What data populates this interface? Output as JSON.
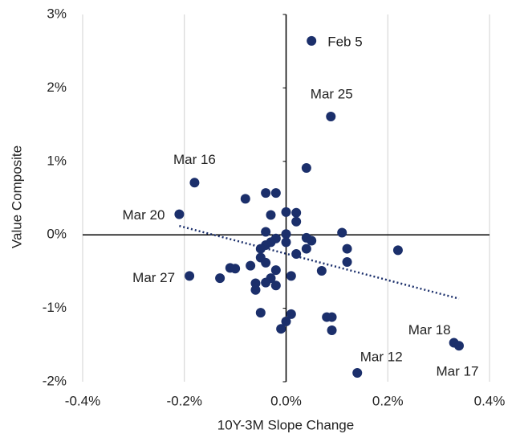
{
  "chart_data": {
    "type": "scatter",
    "x_label": "10Y-3M Slope Change",
    "y_label": "Value Composite",
    "color": "#1b2f6b",
    "grid": true,
    "trendline": true,
    "x": [
      0.05,
      0.088,
      -0.18,
      -0.21,
      -0.19,
      0.33,
      0.34,
      0.14,
      0.04,
      -0.08,
      -0.04,
      -0.02,
      0.0,
      -0.03,
      0.02,
      0.02,
      -0.04,
      0.0,
      0.11,
      0.04,
      0.05,
      0.0,
      -0.02,
      -0.03,
      -0.04,
      -0.05,
      0.04,
      0.12,
      0.22,
      0.02,
      -0.05,
      -0.04,
      -0.07,
      0.12,
      -0.02,
      -0.11,
      -0.1,
      0.07,
      -0.03,
      0.01,
      -0.13,
      -0.06,
      -0.02,
      -0.04,
      -0.06,
      -0.05,
      0.01,
      0.08,
      0.09,
      0.0,
      -0.01,
      0.09
    ],
    "values": [
      2.64,
      1.61,
      0.71,
      0.28,
      -0.56,
      -1.47,
      -1.51,
      -1.88,
      0.91,
      0.49,
      0.57,
      0.57,
      0.31,
      0.27,
      0.3,
      0.18,
      0.04,
      0.01,
      0.03,
      -0.04,
      -0.08,
      -0.1,
      -0.05,
      -0.1,
      -0.14,
      -0.19,
      -0.19,
      -0.19,
      -0.21,
      -0.26,
      -0.31,
      -0.38,
      -0.42,
      -0.37,
      -0.48,
      -0.45,
      -0.46,
      -0.49,
      -0.59,
      -0.56,
      -0.59,
      -0.66,
      -0.69,
      -0.65,
      -0.75,
      -1.06,
      -1.08,
      -1.12,
      -1.12,
      -1.18,
      -1.28,
      -1.3
    ],
    "point_labels": [
      "Feb 5",
      "Mar 25",
      "Mar 16",
      "Mar 20",
      "Mar 27",
      "Mar 18",
      "Mar 17",
      "Mar 12",
      null,
      null,
      null,
      null,
      null,
      null,
      null,
      null,
      null,
      null,
      null,
      null,
      null,
      null,
      null,
      null,
      null,
      null,
      null,
      null,
      null,
      null,
      null,
      null,
      null,
      null,
      null,
      null,
      null,
      null,
      null,
      null,
      null,
      null,
      null,
      null,
      null,
      null,
      null,
      null,
      null,
      null,
      null,
      null
    ],
    "xlim": [
      -0.4,
      0.4
    ],
    "ylim": [
      -2,
      3
    ],
    "xticks": [
      {
        "value": -0.4,
        "label": "-0.4%"
      },
      {
        "value": -0.2,
        "label": "-0.2%"
      },
      {
        "value": 0,
        "label": "0.0%"
      },
      {
        "value": 0.2,
        "label": "0.2%"
      },
      {
        "value": 0.4,
        "label": "0.4%"
      }
    ],
    "yticks": [
      {
        "value": -2,
        "label": "-2%"
      },
      {
        "value": -1,
        "label": "-1%"
      },
      {
        "value": 0,
        "label": "0%"
      },
      {
        "value": 1,
        "label": "1%"
      },
      {
        "value": 2,
        "label": "2%"
      },
      {
        "value": 3,
        "label": "3%"
      }
    ]
  }
}
